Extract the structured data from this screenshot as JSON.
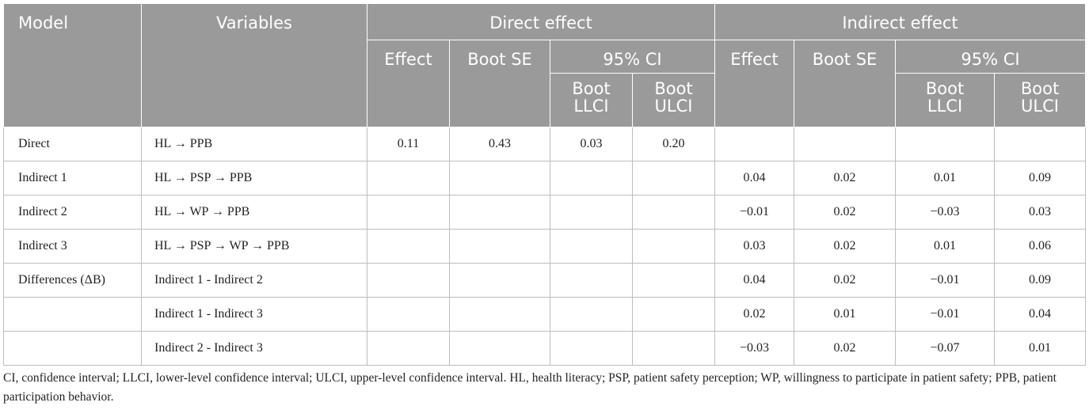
{
  "table": {
    "headers": {
      "model": "Model",
      "variables": "Variables",
      "direct_effect": "Direct effect",
      "indirect_effect": "Indirect effect",
      "effect": "Effect",
      "boot_se": "Boot SE",
      "ci95": "95% CI",
      "boot_llci": "Boot LLCI",
      "boot_ulci": "Boot ULCI"
    },
    "rows": [
      {
        "model": "Direct",
        "variables": "HL →  PPB",
        "d_effect": "0.11",
        "d_se": "0.43",
        "d_llci": "0.03",
        "d_ulci": "0.20",
        "i_effect": "",
        "i_se": "",
        "i_llci": "",
        "i_ulci": ""
      },
      {
        "model": "Indirect 1",
        "variables": "HL →  PSP →  PPB",
        "d_effect": "",
        "d_se": "",
        "d_llci": "",
        "d_ulci": "",
        "i_effect": "0.04",
        "i_se": "0.02",
        "i_llci": "0.01",
        "i_ulci": "0.09"
      },
      {
        "model": "Indirect 2",
        "variables": "HL →  WP →  PPB",
        "d_effect": "",
        "d_se": "",
        "d_llci": "",
        "d_ulci": "",
        "i_effect": "−0.01",
        "i_se": "0.02",
        "i_llci": "−0.03",
        "i_ulci": "0.03"
      },
      {
        "model": "Indirect 3",
        "variables": "HL →  PSP →  WP →  PPB",
        "d_effect": "",
        "d_se": "",
        "d_llci": "",
        "d_ulci": "",
        "i_effect": "0.03",
        "i_se": "0.02",
        "i_llci": "0.01",
        "i_ulci": "0.06"
      },
      {
        "model": "Differences (ΔB)",
        "variables": "Indirect 1 - Indirect 2",
        "d_effect": "",
        "d_se": "",
        "d_llci": "",
        "d_ulci": "",
        "i_effect": "0.04",
        "i_se": "0.02",
        "i_llci": "−0.01",
        "i_ulci": "0.09"
      },
      {
        "model": "",
        "variables": "Indirect 1 - Indirect 3",
        "d_effect": "",
        "d_se": "",
        "d_llci": "",
        "d_ulci": "",
        "i_effect": "0.02",
        "i_se": "0.01",
        "i_llci": "−0.01",
        "i_ulci": "0.04"
      },
      {
        "model": "",
        "variables": "Indirect 2 - Indirect 3",
        "d_effect": "",
        "d_se": "",
        "d_llci": "",
        "d_ulci": "",
        "i_effect": "−0.03",
        "i_se": "0.02",
        "i_llci": "−0.07",
        "i_ulci": "0.01"
      }
    ]
  },
  "footnote": "CI, confidence interval; LLCI, lower-level confidence interval; ULCI, upper-level confidence interval. HL, health literacy; PSP, patient safety perception; WP, willingness to participate in patient safety; PPB, patient participation behavior."
}
